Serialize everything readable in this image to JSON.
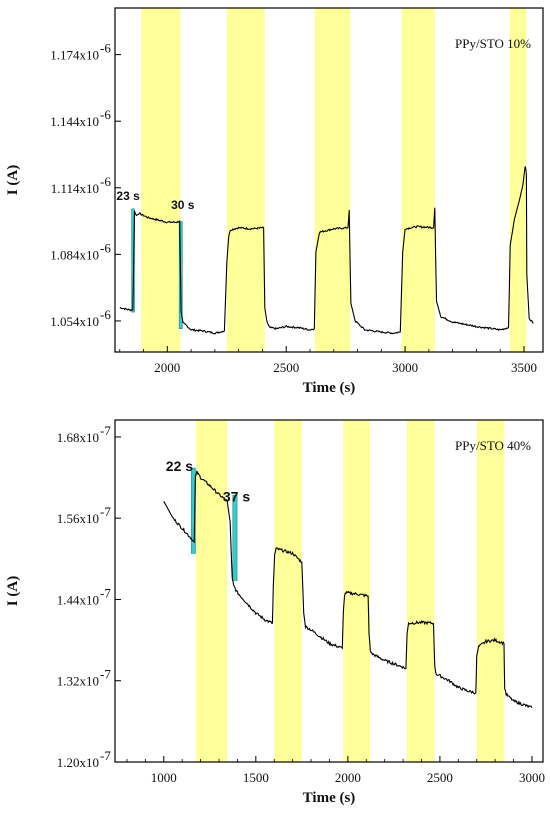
{
  "chart_data": [
    {
      "type": "line",
      "xlabel": "Time (s)",
      "ylabel": "I (A)",
      "xlim": [
        1780,
        3580
      ],
      "ylim": [
        1.04e-06,
        1.195e-06
      ],
      "xticks": [
        2000,
        2500,
        3000,
        3500
      ],
      "xtick_labels": [
        "2000",
        "2500",
        "3000",
        "3500"
      ],
      "yticks": [
        1.054e-06,
        1.084e-06,
        1.114e-06,
        1.144e-06,
        1.174e-06
      ],
      "ytick_labels": [
        "1.054x10",
        "1.084x10",
        "1.114x10",
        "1.144x10",
        "1.174x10"
      ],
      "ytick_exponent": "-6",
      "legend_text": "PPy/STO 10%",
      "grid": false,
      "colors": {
        "line": "#000000",
        "light": "#ffff99",
        "rise_fall_marker": "#33cccc"
      },
      "light_on_intervals": [
        [
          1890,
          2055
        ],
        [
          2250,
          2410
        ],
        [
          2620,
          2770
        ],
        [
          2985,
          3125
        ],
        [
          3440,
          3510
        ]
      ],
      "annotations": [
        {
          "text": "23 s",
          "x": 1835,
          "y": 1.1085e-06
        },
        {
          "text": "30 s",
          "x": 2065,
          "y": 1.1045e-06
        }
      ],
      "markers": [
        {
          "x0": 1850,
          "x1": 1862,
          "y0": 1.058e-06,
          "y1": 1.1045e-06
        },
        {
          "x0": 2050,
          "x1": 2063,
          "y0": 1.0505e-06,
          "y1": 1.0987e-06
        }
      ],
      "series": [
        {
          "x": [
            1800,
            1840,
            1855,
            1862,
            1870,
            1880,
            1890,
            1920,
            1960,
            2000,
            2040,
            2052,
            2058,
            2066,
            2080,
            2100,
            2150,
            2200,
            2240,
            2250,
            2258,
            2265,
            2300,
            2350,
            2405,
            2410,
            2418,
            2430,
            2460,
            2500,
            2550,
            2600,
            2618,
            2625,
            2640,
            2700,
            2760,
            2765,
            2772,
            2790,
            2830,
            2900,
            2950,
            2980,
            2990,
            3000,
            3050,
            3120,
            3125,
            3132,
            3150,
            3200,
            3300,
            3400,
            3435,
            3442,
            3460,
            3480,
            3495,
            3505,
            3510,
            3512,
            3522,
            3540
          ],
          "y": [
            1.06e-06,
            1.059e-06,
            1.059e-06,
            1.1035e-06,
            1.1015e-06,
            1.1025e-06,
            1.102e-06,
            1.1005e-06,
            1.0995e-06,
            1.0985e-06,
            1.0985e-06,
            1.099e-06,
            1.058e-06,
            1.053e-06,
            1.052e-06,
            1.05e-06,
            1.0495e-06,
            1.0485e-06,
            1.0495e-06,
            1.08e-06,
            1.092e-06,
            1.095e-06,
            1.096e-06,
            1.0955e-06,
            1.096e-06,
            1.06e-06,
            1.054e-06,
            1.051e-06,
            1.0505e-06,
            1.0515e-06,
            1.051e-06,
            1.05e-06,
            1.0505e-06,
            1.085e-06,
            1.094e-06,
            1.0955e-06,
            1.096e-06,
            1.104e-06,
            1.062e-06,
            1.054e-06,
            1.05e-06,
            1.049e-06,
            1.0485e-06,
            1.049e-06,
            1.085e-06,
            1.0955e-06,
            1.0965e-06,
            1.096e-06,
            1.105e-06,
            1.063e-06,
            1.056e-06,
            1.0535e-06,
            1.0515e-06,
            1.05e-06,
            1.051e-06,
            1.088e-06,
            1.1e-06,
            1.108e-06,
            1.115e-06,
            1.124e-06,
            1.12e-06,
            1.075e-06,
            1.055e-06,
            1.053e-06
          ]
        }
      ]
    },
    {
      "type": "line",
      "xlabel": "Time (s)",
      "ylabel": "I (A)",
      "xlim": [
        735,
        3060
      ],
      "ylim": [
        1.2e-07,
        1.705e-07
      ],
      "xticks": [
        1000,
        1500,
        2000,
        2500,
        3000
      ],
      "xtick_labels": [
        "1000",
        "1500",
        "2000",
        "2500",
        "3000"
      ],
      "yticks": [
        1.2e-07,
        1.32e-07,
        1.44e-07,
        1.56e-07,
        1.68e-07
      ],
      "ytick_labels": [
        "1.20x10",
        "1.32x10",
        "1.44x10",
        "1.56x10",
        "1.68x10"
      ],
      "ytick_exponent": "-7",
      "legend_text": "PPy/STO 40%",
      "grid": false,
      "colors": {
        "line": "#000000",
        "light": "#ffff99",
        "rise_fall_marker": "#33cccc"
      },
      "light_on_intervals": [
        [
          1175,
          1345
        ],
        [
          1600,
          1750
        ],
        [
          1975,
          2120
        ],
        [
          2320,
          2470
        ],
        [
          2700,
          2850
        ]
      ],
      "annotations": [
        {
          "text": "22 s",
          "x": 1085,
          "y": 1.63e-07
        },
        {
          "text": "37 s",
          "x": 1395,
          "y": 1.585e-07
        }
      ],
      "markers": [
        {
          "x0": 1150,
          "x1": 1172,
          "y0": 1.508e-07,
          "y1": 1.634e-07
        },
        {
          "x0": 1375,
          "x1": 1398,
          "y0": 1.468e-07,
          "y1": 1.594e-07
        }
      ],
      "series": [
        {
          "x": [
            1000,
            1050,
            1100,
            1150,
            1165,
            1172,
            1180,
            1200,
            1250,
            1300,
            1345,
            1360,
            1372,
            1380,
            1400,
            1450,
            1500,
            1550,
            1590,
            1595,
            1602,
            1610,
            1650,
            1700,
            1750,
            1760,
            1770,
            1800,
            1850,
            1900,
            1950,
            1970,
            1975,
            1982,
            1990,
            2050,
            2110,
            2115,
            2122,
            2130,
            2200,
            2250,
            2300,
            2315,
            2322,
            2330,
            2400,
            2460,
            2465,
            2472,
            2480,
            2550,
            2600,
            2650,
            2695,
            2700,
            2710,
            2750,
            2800,
            2848,
            2852,
            2860,
            2900,
            2950,
            3000
          ],
          "y": [
            1.585e-07,
            1.56e-07,
            1.545e-07,
            1.53e-07,
            1.525e-07,
            1.62e-07,
            1.628e-07,
            1.62e-07,
            1.608e-07,
            1.595e-07,
            1.585e-07,
            1.555e-07,
            1.47e-07,
            1.46e-07,
            1.45e-07,
            1.435e-07,
            1.42e-07,
            1.41e-07,
            1.405e-07,
            1.46e-07,
            1.505e-07,
            1.515e-07,
            1.512e-07,
            1.508e-07,
            1.495e-07,
            1.42e-07,
            1.4e-07,
            1.395e-07,
            1.385e-07,
            1.375e-07,
            1.37e-07,
            1.368e-07,
            1.42e-07,
            1.447e-07,
            1.45e-07,
            1.448e-07,
            1.445e-07,
            1.39e-07,
            1.365e-07,
            1.36e-07,
            1.35e-07,
            1.345e-07,
            1.34e-07,
            1.338e-07,
            1.39e-07,
            1.405e-07,
            1.406e-07,
            1.405e-07,
            1.405e-07,
            1.34e-07,
            1.33e-07,
            1.32e-07,
            1.31e-07,
            1.305e-07,
            1.302e-07,
            1.355e-07,
            1.37e-07,
            1.378e-07,
            1.38e-07,
            1.375e-07,
            1.31e-07,
            1.3e-07,
            1.29e-07,
            1.285e-07,
            1.28e-07
          ]
        }
      ]
    }
  ]
}
